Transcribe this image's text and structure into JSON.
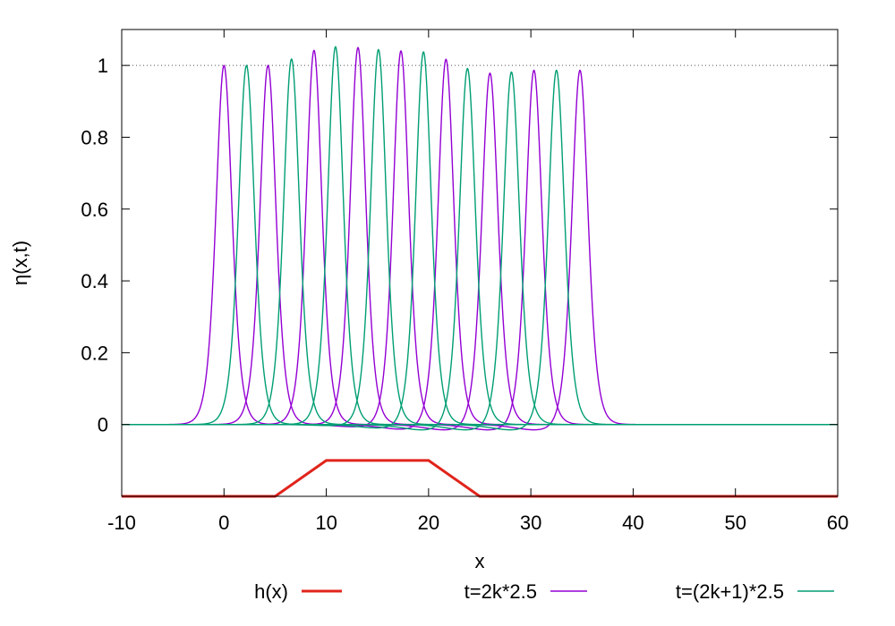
{
  "chart_data": {
    "type": "line",
    "xlabel": "x",
    "ylabel": "η(x,t)",
    "xlim": [
      -10,
      60
    ],
    "ylim": [
      -0.2,
      1.1
    ],
    "x_ticks": [
      "-10",
      "0",
      "10",
      "20",
      "30",
      "40",
      "50",
      "60"
    ],
    "y_ticks": [
      "0",
      "0.2",
      "0.4",
      "0.6",
      "0.8",
      "1"
    ],
    "reference_line": {
      "y": 1,
      "style": "dotted"
    },
    "legend_position": "bottom",
    "series": [
      {
        "name": "h(x)",
        "color": "#e0241b",
        "kind": "polyline",
        "points": [
          [
            -10,
            -0.2
          ],
          [
            5,
            -0.2
          ],
          [
            10,
            -0.1
          ],
          [
            20,
            -0.1
          ],
          [
            25,
            -0.2
          ],
          [
            60,
            -0.2
          ]
        ]
      },
      {
        "name": "t=2k*2.5",
        "color": "#9400d3",
        "kind": "solitons",
        "peaks": [
          {
            "x": 0.0,
            "a": 1.0
          },
          {
            "x": 4.3,
            "a": 1.0
          },
          {
            "x": 8.8,
            "a": 1.042
          },
          {
            "x": 13.1,
            "a": 1.05
          },
          {
            "x": 17.3,
            "a": 1.042
          },
          {
            "x": 21.7,
            "a": 1.02
          },
          {
            "x": 26.0,
            "a": 0.982
          },
          {
            "x": 30.3,
            "a": 0.99
          },
          {
            "x": 34.8,
            "a": 0.99
          }
        ]
      },
      {
        "name": "t=(2k+1)*2.5",
        "color": "#009e73",
        "kind": "solitons",
        "peaks": [
          {
            "x": 2.2,
            "a": 1.0
          },
          {
            "x": 6.6,
            "a": 1.018
          },
          {
            "x": 10.9,
            "a": 1.052
          },
          {
            "x": 15.1,
            "a": 1.045
          },
          {
            "x": 19.5,
            "a": 1.04
          },
          {
            "x": 23.8,
            "a": 0.995
          },
          {
            "x": 28.1,
            "a": 0.985
          },
          {
            "x": 32.5,
            "a": 0.99
          }
        ]
      }
    ]
  }
}
